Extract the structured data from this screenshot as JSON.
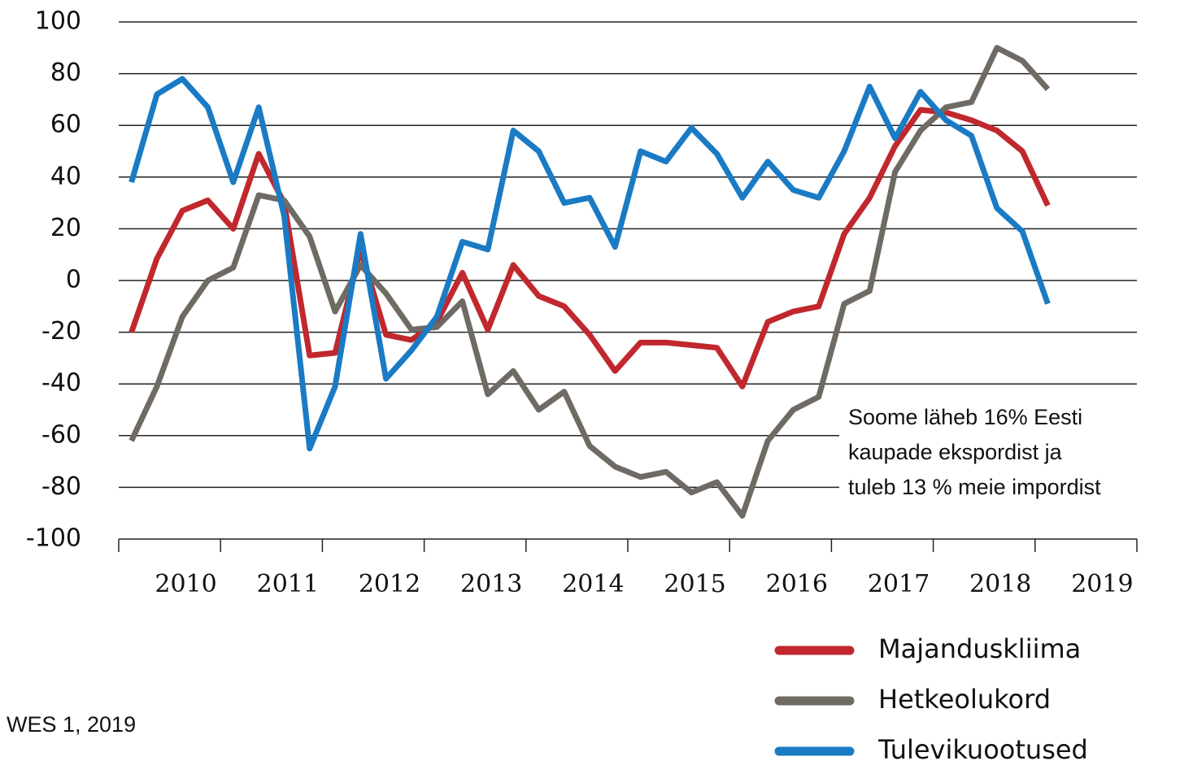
{
  "chart_data": {
    "type": "line",
    "x": [
      2010.125,
      2010.375,
      2010.625,
      2010.875,
      2011.125,
      2011.375,
      2011.625,
      2011.875,
      2012.125,
      2012.375,
      2012.625,
      2012.875,
      2013.125,
      2013.375,
      2013.625,
      2013.875,
      2014.125,
      2014.375,
      2014.625,
      2014.875,
      2015.125,
      2015.375,
      2015.625,
      2015.875,
      2016.125,
      2016.375,
      2016.625,
      2016.875,
      2017.125,
      2017.375,
      2017.625,
      2017.875,
      2018.125,
      2018.375,
      2018.625,
      2018.875,
      2019.125
    ],
    "series": [
      {
        "name": "Majanduskliima",
        "color": "#c0282d",
        "values": [
          -20,
          8.5,
          27,
          31,
          20,
          49,
          30,
          -29,
          -28,
          12,
          -21,
          -23,
          -16,
          3,
          -19,
          6,
          -6,
          -10,
          -21,
          -35,
          -24,
          -24,
          -25,
          -26,
          -41,
          -16,
          -12,
          -10,
          18,
          32,
          52,
          66,
          65,
          62,
          58,
          50,
          29
        ]
      },
      {
        "name": "Hetkeolukord",
        "color": "#706a64",
        "values": [
          -62,
          -41,
          -14,
          0,
          5,
          33,
          31,
          17,
          -12,
          6,
          -5,
          -19,
          -18,
          -8,
          -44,
          -35,
          -50,
          -43,
          -64,
          -72,
          -76,
          -74,
          -82,
          -78,
          -91,
          -62,
          -50,
          -45,
          -9,
          -4,
          42,
          58,
          67,
          69,
          90,
          85,
          74
        ]
      },
      {
        "name": "Tulevikuootused",
        "color": "#1a7bc4",
        "values": [
          38,
          72,
          78,
          67,
          38,
          67,
          25,
          -65,
          -41,
          18,
          -38,
          -27,
          -14,
          15,
          12,
          58,
          50,
          30,
          32,
          13,
          50,
          46,
          59,
          49,
          32,
          46,
          35,
          32,
          50,
          75,
          55,
          73,
          62,
          56,
          28,
          19,
          -9
        ]
      }
    ],
    "xlim": [
      2010,
      2020
    ],
    "xticks": [
      {
        "value": 2010.5,
        "label": "2010"
      },
      {
        "value": 2011.5,
        "label": "2011"
      },
      {
        "value": 2012.5,
        "label": "2012"
      },
      {
        "value": 2013.5,
        "label": "2013"
      },
      {
        "value": 2014.5,
        "label": "2014"
      },
      {
        "value": 2015.5,
        "label": "2015"
      },
      {
        "value": 2016.5,
        "label": "2016"
      },
      {
        "value": 2017.5,
        "label": "2017"
      },
      {
        "value": 2018.5,
        "label": "2018"
      },
      {
        "value": 2019.5,
        "label": "2019"
      }
    ],
    "ylim": [
      -100,
      100
    ],
    "yticks": [
      -100,
      -80,
      -60,
      -40,
      -20,
      0,
      20,
      40,
      60,
      80,
      100
    ],
    "grid": true,
    "annotation": [
      "Soome läheb 16% Eesti",
      "kaupade ekspordist ja",
      "tuleb 13 % meie impordist"
    ],
    "source": "WES 1, 2019"
  }
}
